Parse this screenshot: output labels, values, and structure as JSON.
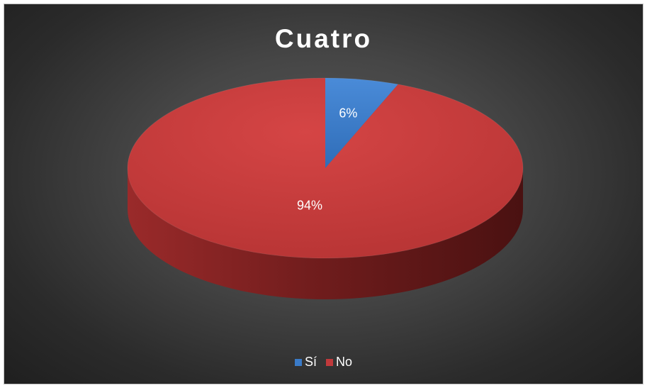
{
  "chart_data": {
    "type": "pie",
    "title": "Cuatro",
    "categories": [
      "Sí",
      "No"
    ],
    "values": [
      6,
      94
    ],
    "data_labels": [
      "6%",
      "94%"
    ],
    "colors": [
      "#3a7bc8",
      "#c0393b"
    ],
    "legend_position": "bottom",
    "style": "3d"
  }
}
